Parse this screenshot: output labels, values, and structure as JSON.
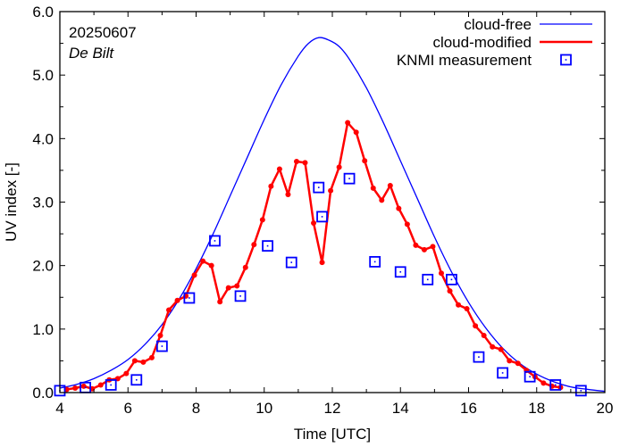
{
  "chart_data": {
    "type": "line",
    "title": "",
    "annotations": [
      "20250607",
      "De Bilt"
    ],
    "xlabel": "Time  [UTC]",
    "ylabel": "UV index  [-]",
    "xlim": [
      4,
      20
    ],
    "ylim": [
      0,
      6
    ],
    "xticks": [
      4,
      6,
      8,
      10,
      12,
      14,
      16,
      18,
      20
    ],
    "xtick_labels": [
      "4",
      "6",
      "8",
      "10",
      "12",
      "14",
      "16",
      "18",
      "20"
    ],
    "yticks": [
      0,
      1,
      2,
      3,
      4,
      5,
      6
    ],
    "ytick_labels": [
      "0.0",
      "1.0",
      "2.0",
      "3.0",
      "4.0",
      "5.0",
      "6.0"
    ],
    "grid": false,
    "legend_position": "top-right",
    "series": [
      {
        "name": "cloud-free",
        "kind": "line",
        "color": "#0000ff",
        "x": [
          4,
          4.5,
          5,
          5.5,
          6,
          6.5,
          7,
          7.5,
          8,
          8.5,
          9,
          9.5,
          10,
          10.5,
          11,
          11.3,
          11.6,
          11.9,
          12.2,
          12.5,
          13,
          13.5,
          14,
          14.5,
          15,
          15.5,
          16,
          16.5,
          17,
          17.5,
          18,
          18.5,
          19,
          19.5,
          20
        ],
        "y": [
          0.07,
          0.13,
          0.22,
          0.35,
          0.52,
          0.76,
          1.07,
          1.47,
          1.95,
          2.5,
          3.1,
          3.7,
          4.3,
          4.85,
          5.3,
          5.5,
          5.59,
          5.55,
          5.45,
          5.25,
          4.8,
          4.25,
          3.65,
          3.05,
          2.45,
          1.9,
          1.42,
          1.02,
          0.7,
          0.46,
          0.29,
          0.17,
          0.09,
          0.05,
          0.02
        ]
      },
      {
        "name": "cloud-modified",
        "kind": "line-points",
        "color": "#ff0000",
        "x": [
          4.2,
          4.45,
          4.7,
          4.95,
          5.2,
          5.45,
          5.7,
          5.95,
          6.2,
          6.45,
          6.7,
          6.95,
          7.2,
          7.45,
          7.7,
          7.95,
          8.2,
          8.45,
          8.7,
          8.95,
          9.2,
          9.45,
          9.7,
          9.95,
          10.2,
          10.45,
          10.7,
          10.95,
          11.2,
          11.45,
          11.7,
          11.95,
          12.2,
          12.45,
          12.7,
          12.95,
          13.2,
          13.45,
          13.7,
          13.95,
          14.2,
          14.45,
          14.7,
          14.95,
          15.2,
          15.45,
          15.7,
          15.95,
          16.2,
          16.45,
          16.7,
          16.95,
          17.2,
          17.45,
          17.7,
          17.95,
          18.2,
          18.45,
          18.7
        ],
        "y": [
          0.05,
          0.07,
          0.1,
          0.06,
          0.12,
          0.2,
          0.22,
          0.3,
          0.5,
          0.48,
          0.55,
          0.9,
          1.3,
          1.45,
          1.52,
          1.85,
          2.07,
          2.0,
          1.43,
          1.65,
          1.68,
          1.97,
          2.33,
          2.72,
          3.25,
          3.52,
          3.12,
          3.64,
          3.62,
          2.67,
          2.05,
          3.18,
          3.55,
          4.25,
          4.1,
          3.65,
          3.22,
          3.03,
          3.26,
          2.9,
          2.65,
          2.32,
          2.25,
          2.3,
          1.88,
          1.6,
          1.38,
          1.32,
          1.05,
          0.9,
          0.72,
          0.68,
          0.5,
          0.46,
          0.35,
          0.25,
          0.15,
          0.1,
          0.08
        ]
      },
      {
        "name": "KNMI measurement",
        "kind": "scatter",
        "color": "#0000ff",
        "x": [
          4.0,
          4.75,
          5.5,
          6.25,
          7.0,
          7.8,
          8.55,
          9.3,
          10.1,
          10.8,
          11.6,
          11.7,
          12.5,
          13.25,
          14.0,
          14.8,
          15.5,
          16.3,
          17.0,
          17.8,
          18.55,
          19.3
        ],
        "y": [
          0.03,
          0.08,
          0.12,
          0.2,
          0.73,
          1.49,
          2.39,
          1.52,
          2.31,
          2.05,
          3.23,
          2.77,
          3.37,
          2.06,
          1.9,
          1.78,
          1.78,
          0.56,
          0.31,
          0.25,
          0.12,
          0.03
        ]
      }
    ]
  }
}
